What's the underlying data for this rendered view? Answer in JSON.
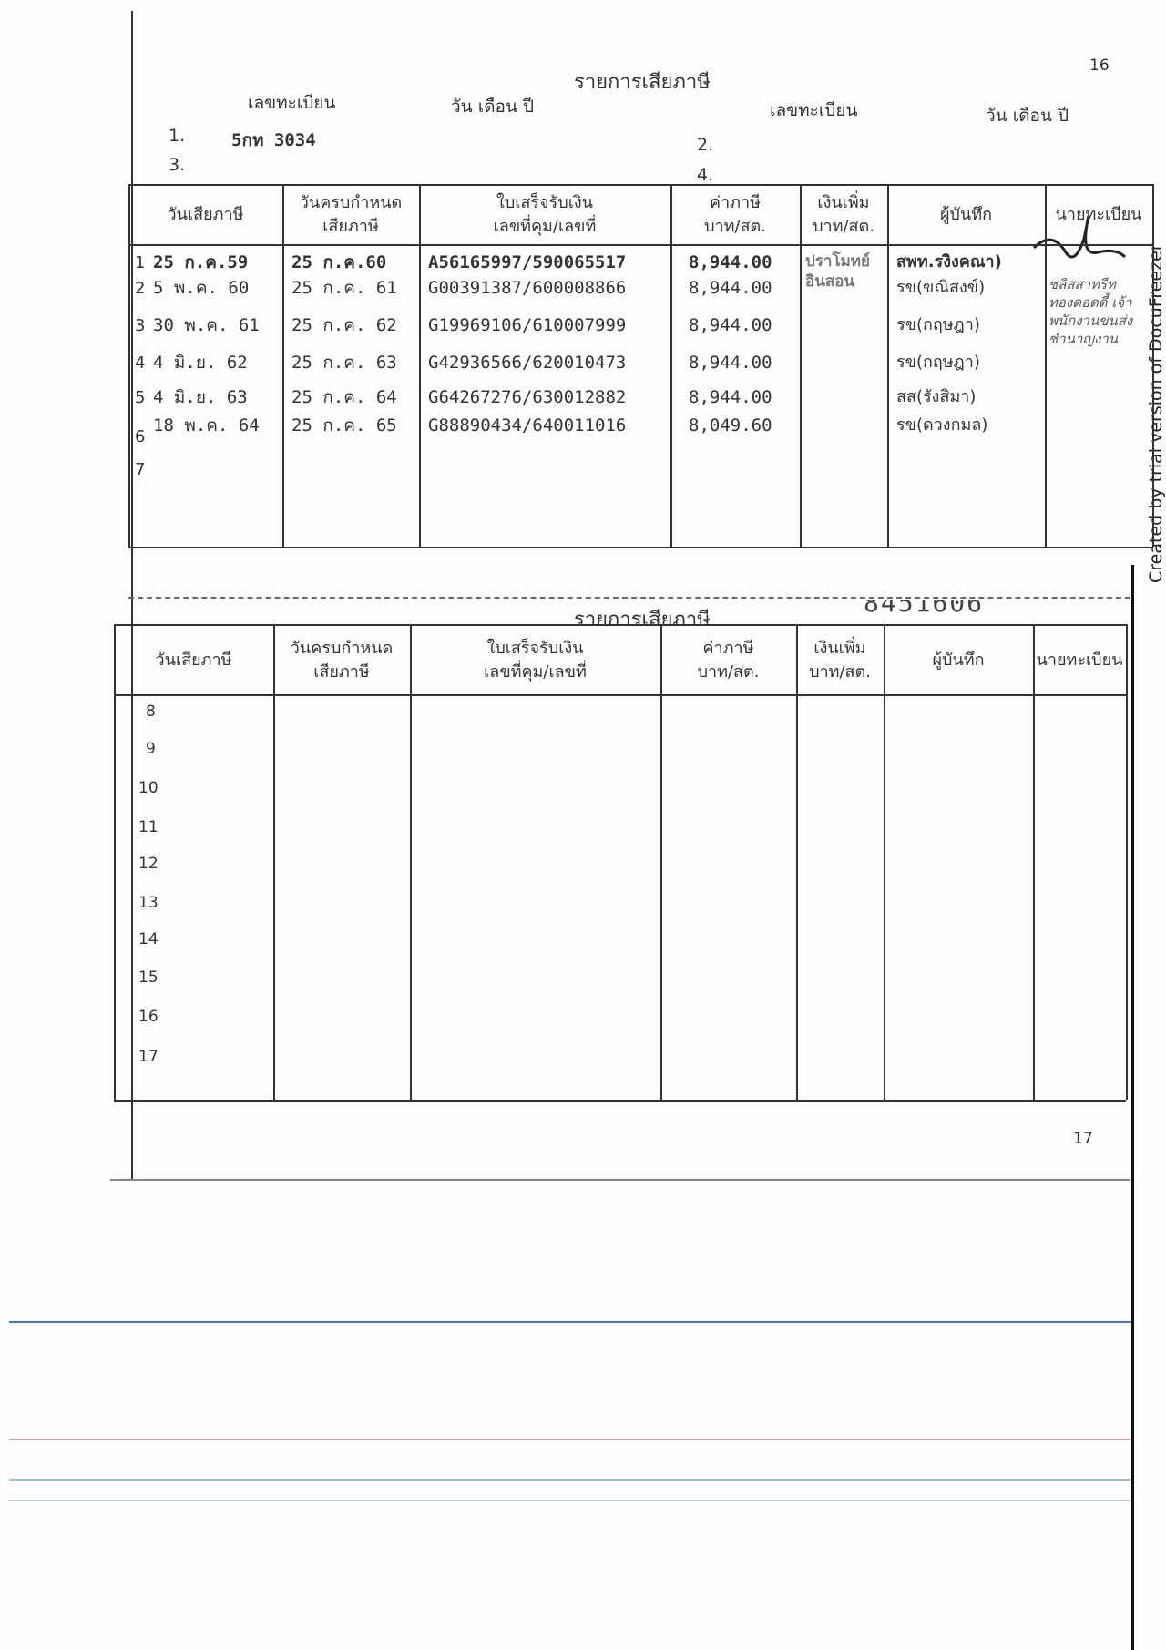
{
  "page_number_top": "16",
  "page_number_bottom": "17",
  "title": "รายการเสียภาษี",
  "registration_label": "เลขทะเบียน",
  "date_label": "วัน เดือน ปี",
  "registrations": [
    {
      "index": "1.",
      "value": "5กท 3034"
    },
    {
      "index": "2.",
      "value": ""
    },
    {
      "index": "3.",
      "value": ""
    },
    {
      "index": "4.",
      "value": ""
    }
  ],
  "columns": [
    "วันเสียภาษี",
    "วันครบกำหนด\nเสียภาษี",
    "ใบเสร็จรับเงิน\nเลขที่คุม/เลขที่",
    "ค่าภาษี\nบาท/สต.",
    "เงินเพิ่ม\nบาท/สต.",
    "ผู้บันทึก",
    "นายทะเบียน"
  ],
  "rows": [
    {
      "no": "1",
      "paid": "25 ก.ค.59",
      "due": "25 ก.ค.60",
      "receipt": "A56165997/590065517",
      "tax": "8,944.00",
      "extra": "ปราโมทย์ อินสอน",
      "recorder": "สพท.รงิงคณา)",
      "registrar": ""
    },
    {
      "no": "2",
      "paid": "5 พ.ค. 60",
      "due": "25 ก.ค. 61",
      "receipt": "G00391387/600008866",
      "tax": "8,944.00",
      "extra": "",
      "recorder": "รข(ขณิสงข์)",
      "registrar": ""
    },
    {
      "no": "3",
      "paid": "30 พ.ค. 61",
      "due": "25 ก.ค. 62",
      "receipt": "G19969106/610007999",
      "tax": "8,944.00",
      "extra": "",
      "recorder": "รข(กฤษฎา)",
      "registrar": ""
    },
    {
      "no": "4",
      "paid": "4 มิ.ย. 62",
      "due": "25 ก.ค. 63",
      "receipt": "G42936566/620010473",
      "tax": "8,944.00",
      "extra": "",
      "recorder": "รข(กฤษฎา)",
      "registrar": ""
    },
    {
      "no": "5",
      "paid": "4 มิ.ย. 63",
      "due": "25 ก.ค. 64",
      "receipt": "G64267276/630012882",
      "tax": "8,944.00",
      "extra": "",
      "recorder": "สส(รังสิมา)",
      "registrar": ""
    },
    {
      "no": "6",
      "paid": "18 พ.ค. 64",
      "due": "25 ก.ค. 65",
      "receipt": "G88890434/640011016",
      "tax": "8,049.60",
      "extra": "",
      "recorder": "รข(ดวงกมล)",
      "registrar": ""
    },
    {
      "no": "7",
      "paid": "",
      "due": "",
      "receipt": "",
      "tax": "",
      "extra": "",
      "recorder": "",
      "registrar": ""
    }
  ],
  "stamp_text": "ชลิสสาทรีท ทองดอดดี้ เจ้าพนักงานขนส่งชำนาญงาน",
  "serial_number": "8451606",
  "rows2": [
    "8",
    "9",
    "10",
    "11",
    "12",
    "13",
    "14",
    "15",
    "16",
    "17"
  ],
  "watermark": "Created by trial version of DocuFreezer"
}
